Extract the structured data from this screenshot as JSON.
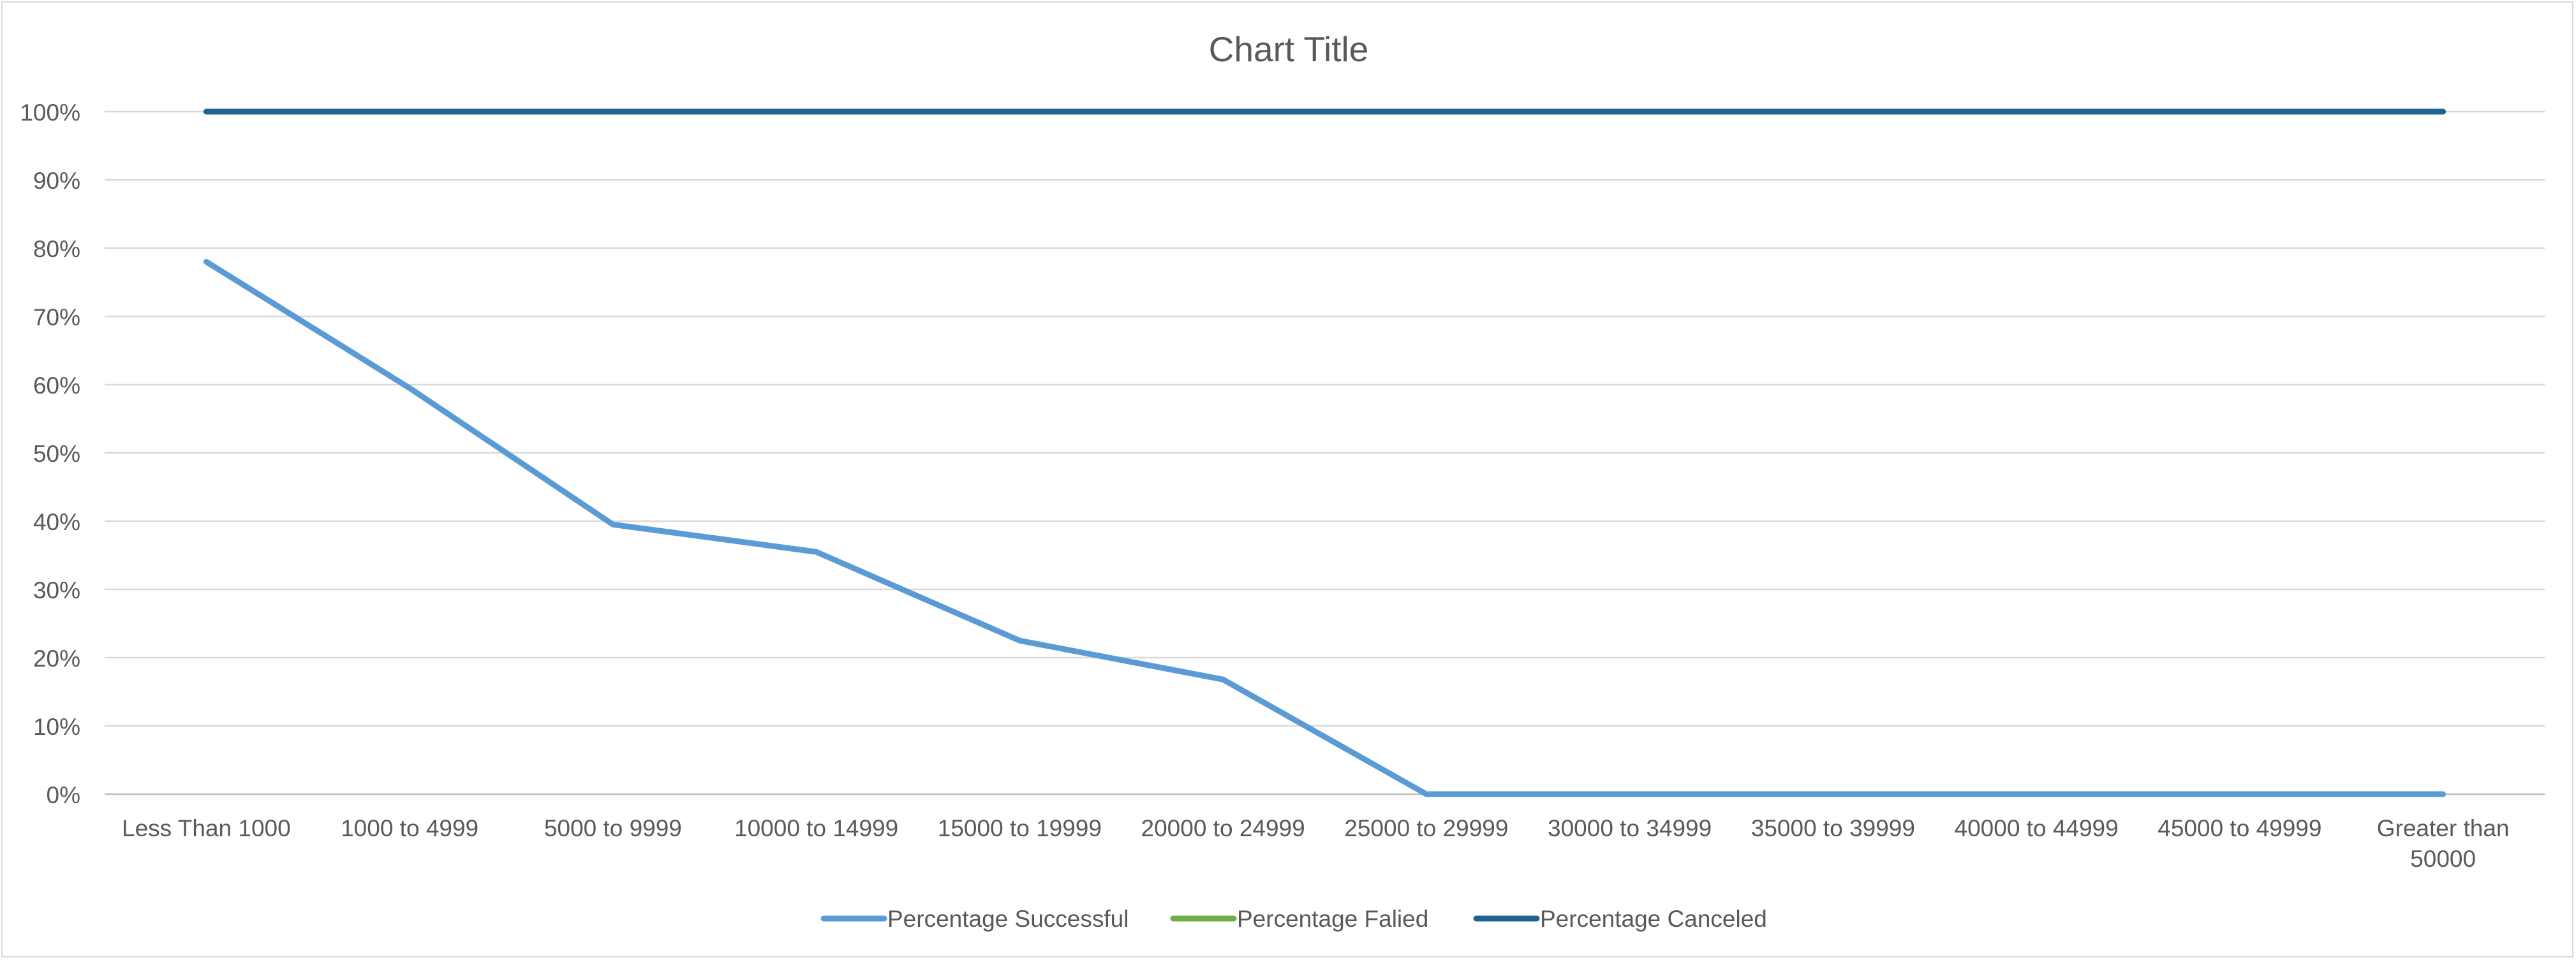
{
  "chart_data": {
    "type": "line",
    "title": "Chart Title",
    "xlabel": "",
    "ylabel": "",
    "categories": [
      "Less Than 1000",
      "1000 to 4999",
      "5000 to 9999",
      "10000 to 14999",
      "15000 to 19999",
      "20000 to 24999",
      "25000 to 29999",
      "30000 to 34999",
      "35000 to 39999",
      "40000 to 44999",
      "45000 to 49999",
      "Greater than 50000"
    ],
    "ylim": [
      0,
      1
    ],
    "y_ticks": [
      "0%",
      "10%",
      "20%",
      "30%",
      "40%",
      "50%",
      "60%",
      "70%",
      "80%",
      "90%",
      "100%"
    ],
    "grid": true,
    "legend_position": "bottom",
    "series": [
      {
        "name": "Percentage Successful",
        "color": "#5b9bd5",
        "values": [
          0.78,
          0.595,
          0.395,
          0.355,
          0.225,
          0.168,
          0.0,
          0.0,
          0.0,
          0.0,
          0.0,
          0.0
        ]
      },
      {
        "name": "Percentage Falied",
        "color": "#70ad47",
        "values": [
          1.0,
          1.0,
          1.0,
          1.0,
          1.0,
          1.0,
          1.0,
          1.0,
          1.0,
          1.0,
          1.0,
          1.0
        ]
      },
      {
        "name": "Percentage Canceled",
        "color": "#1f6391",
        "values": [
          1.0,
          1.0,
          1.0,
          1.0,
          1.0,
          1.0,
          1.0,
          1.0,
          1.0,
          1.0,
          1.0,
          1.0
        ]
      }
    ]
  }
}
